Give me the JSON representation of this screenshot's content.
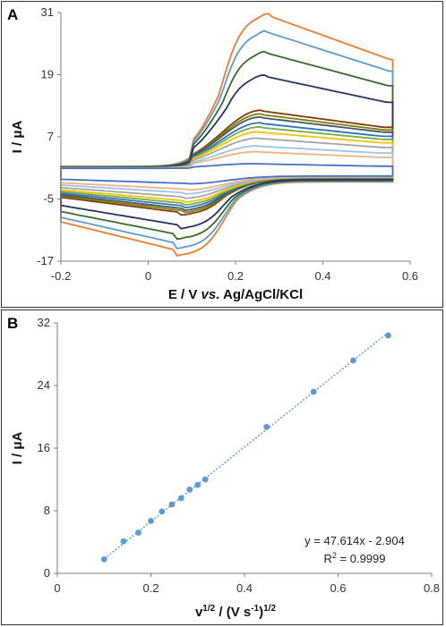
{
  "chart_data": [
    {
      "panel_label": "A",
      "type": "line",
      "xlabel_parts": [
        "E / V ",
        "vs.",
        " Ag/AgCl/KCl"
      ],
      "ylabel": "I / μA",
      "xlim": [
        -0.2,
        0.6
      ],
      "ylim": [
        -17,
        31
      ],
      "xticks": [
        "-0.2",
        "0",
        "0.2",
        "0.4",
        "0.6"
      ],
      "yticks": [
        "31",
        "19",
        "7",
        "-5",
        "-17"
      ],
      "grid": false,
      "series": [
        {
          "color": "#ED7D31",
          "ipa": 30.4,
          "ipc": -14.8
        },
        {
          "color": "#5B9BD5",
          "ipa": 27.2,
          "ipc": -13.5
        },
        {
          "color": "#3A6B2A",
          "ipa": 23.2,
          "ipc": -11.8
        },
        {
          "color": "#203864",
          "ipa": 18.7,
          "ipc": -10.0
        },
        {
          "color": "#833C0B",
          "ipa": 12.0,
          "ipc": -7.6
        },
        {
          "color": "#7F7F00",
          "ipa": 11.3,
          "ipc": -7.2
        },
        {
          "color": "#44546A",
          "ipa": 10.7,
          "ipc": -6.8
        },
        {
          "color": "#2E75B6",
          "ipa": 9.6,
          "ipc": -6.3
        },
        {
          "color": "#70AD47",
          "ipa": 8.8,
          "ipc": -5.8
        },
        {
          "color": "#FFC000",
          "ipa": 7.9,
          "ipc": -5.3
        },
        {
          "color": "#A5A5A5",
          "ipa": 6.7,
          "ipc": -4.6
        },
        {
          "color": "#9DC3E6",
          "ipa": 5.2,
          "ipc": -3.8
        },
        {
          "color": "#F4B183",
          "ipa": 4.1,
          "ipc": -3.1
        },
        {
          "color": "#4472C4",
          "ipa": 1.8,
          "ipc": -2.0
        }
      ]
    },
    {
      "panel_label": "B",
      "type": "scatter",
      "xlabel_main": "v",
      "xlabel_sup": "1/2",
      "xlabel_rest": " / (V s",
      "xlabel_sup2": "-1",
      "xlabel_end": ")",
      "xlabel_sup3": "1/2",
      "ylabel": "I / μA",
      "xlim": [
        0,
        0.8
      ],
      "ylim": [
        0,
        32
      ],
      "xticks": [
        "0",
        "0.2",
        "0.4",
        "0.6",
        "0.8"
      ],
      "yticks": [
        "0",
        "8",
        "16",
        "24",
        "32"
      ],
      "grid": false,
      "x": [
        0.1,
        0.1414,
        0.1732,
        0.2,
        0.2236,
        0.2449,
        0.2646,
        0.2828,
        0.3,
        0.3162,
        0.4472,
        0.5477,
        0.6325,
        0.7071
      ],
      "y": [
        1.8,
        4.1,
        5.2,
        6.7,
        7.9,
        8.8,
        9.6,
        10.7,
        11.3,
        12.0,
        18.7,
        23.2,
        27.2,
        30.4
      ],
      "trendline": {
        "slope": 47.614,
        "intercept": -2.904
      },
      "equation": "y = 47.614x - 2.904",
      "r2_label": "R",
      "r2_sup": "2",
      "r2_value": " = 0.9999",
      "point_color": "#5B9BD5"
    }
  ]
}
